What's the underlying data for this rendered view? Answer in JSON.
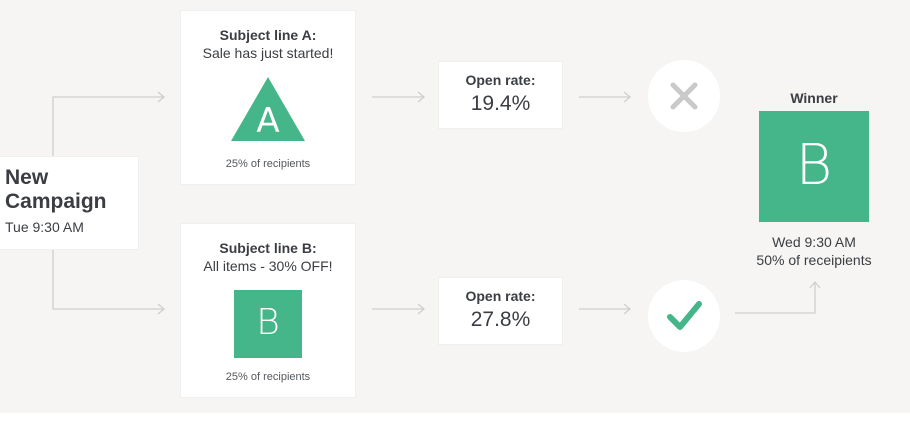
{
  "campaign": {
    "title": "New Campaign",
    "time": "Tue 9:30 AM"
  },
  "variants": [
    {
      "label": "Subject line A:",
      "text": "Sale has just started!",
      "letter": "A",
      "shape": "triangle",
      "share": "25% of recipients",
      "open_rate_label": "Open rate:",
      "open_rate": "19.4%",
      "result_icon": "close-icon"
    },
    {
      "label": "Subject line B:",
      "text": "All items - 30% OFF!",
      "letter": "B",
      "shape": "square",
      "share": "25% of recipients",
      "open_rate_label": "Open rate:",
      "open_rate": "27.8%",
      "result_icon": "check-icon"
    }
  ],
  "winner": {
    "label": "Winner",
    "letter": "B",
    "time": "Wed 9:30 AM",
    "recipients": "50% of receipients"
  },
  "colors": {
    "background": "#f6f5f3",
    "card": "#ffffff",
    "accent_green": "#45b58a",
    "x_gray": "#c9c9c9",
    "connector": "#cfcfcf",
    "text": "#3a3d42"
  }
}
